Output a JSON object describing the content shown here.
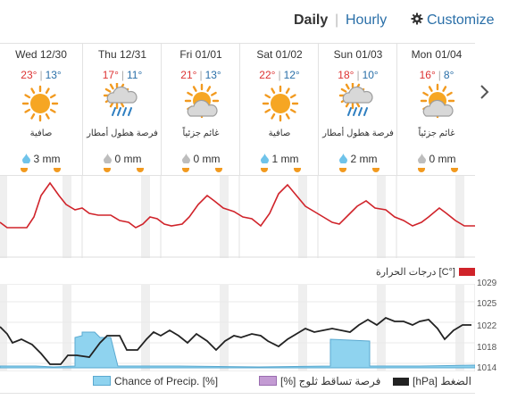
{
  "tabs": {
    "daily": "Daily",
    "separator": "|",
    "hourly": "Hourly",
    "customize": "Customize"
  },
  "days": [
    {
      "name": "Wed 12/30",
      "hi": "23°",
      "lo": "13°",
      "icon": "sunny-icon",
      "cond": "صافية",
      "precip": "3 mm"
    },
    {
      "name": "Thu 12/31",
      "hi": "17°",
      "lo": "11°",
      "icon": "rain-showers-icon",
      "cond": "فرصة هطول أمطار",
      "precip": "0 mm"
    },
    {
      "name": "Fri 01/01",
      "hi": "21°",
      "lo": "13°",
      "icon": "partly-cloudy-icon",
      "cond": "غائم جزئياً",
      "precip": "0 mm"
    },
    {
      "name": "Sat 01/02",
      "hi": "22°",
      "lo": "12°",
      "icon": "sunny-icon",
      "cond": "صافية",
      "precip": "1 mm"
    },
    {
      "name": "Sun 01/03",
      "hi": "18°",
      "lo": "10°",
      "icon": "rain-showers-icon",
      "cond": "فرصة هطول أمطار",
      "precip": "2 mm"
    },
    {
      "name": "Mon 01/04",
      "hi": "16°",
      "lo": "8°",
      "icon": "partly-cloudy-icon",
      "cond": "غائم جزئياً",
      "precip": "0 mm"
    }
  ],
  "legend_temp": "[°C] درجات الحرارة",
  "pressure_axis": [
    "1029",
    "1025",
    "1022",
    "1018",
    "1014"
  ],
  "legend_precip": {
    "chance": "Chance of Precip. [%]",
    "snow": "[%] فرصة تساقط ثلوج",
    "pressure": "[hPa] الضغط"
  },
  "colors": {
    "temp": "#d0232a",
    "precip": "#8fd3ef",
    "snow": "#c39bd3",
    "pressure": "#222222",
    "link": "#2a6fa8"
  }
}
